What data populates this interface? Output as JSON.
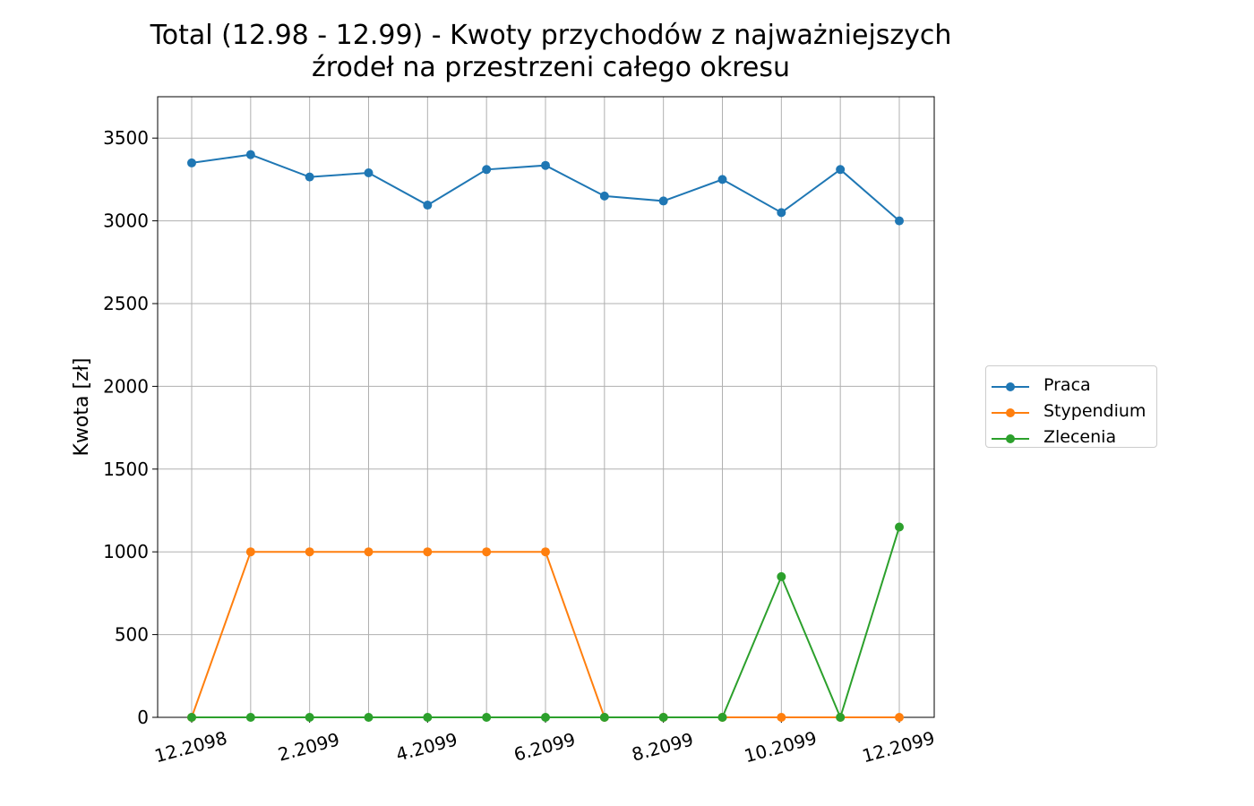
{
  "chart_data": {
    "type": "line",
    "title_line1": "Total (12.98 - 12.99) - Kwoty przychodów z najważniejszych",
    "title_line2": "źrodeł na przestrzeni całego okresu",
    "xlabel": "",
    "ylabel": "Kwota [zł]",
    "x": [
      "12.2098",
      "1.2099",
      "2.2099",
      "3.2099",
      "4.2099",
      "5.2099",
      "6.2099",
      "7.2099",
      "8.2099",
      "9.2099",
      "10.2099",
      "11.2099",
      "12.2099"
    ],
    "x_tick_labels": [
      "12.2098",
      "2.2099",
      "4.2099",
      "6.2099",
      "8.2099",
      "10.2099",
      "12.2099"
    ],
    "x_tick_indices": [
      0,
      2,
      4,
      6,
      8,
      10,
      12
    ],
    "ylim": [
      0,
      3750
    ],
    "y_ticks": [
      0,
      500,
      1000,
      1500,
      2000,
      2500,
      3000,
      3500
    ],
    "grid": true,
    "legend_position": "right",
    "series": [
      {
        "name": "Praca",
        "color": "#1f77b4",
        "values": [
          3350,
          3400,
          3265,
          3290,
          3095,
          3310,
          3335,
          3150,
          3120,
          3250,
          3050,
          3310,
          3000
        ]
      },
      {
        "name": "Stypendium",
        "color": "#ff7f0e",
        "values": [
          0,
          1000,
          1000,
          1000,
          1000,
          1000,
          1000,
          0,
          0,
          0,
          0,
          0,
          0
        ]
      },
      {
        "name": "Zlecenia",
        "color": "#2ca02c",
        "values": [
          0,
          0,
          0,
          0,
          0,
          0,
          0,
          0,
          0,
          0,
          850,
          0,
          1150
        ]
      }
    ]
  }
}
